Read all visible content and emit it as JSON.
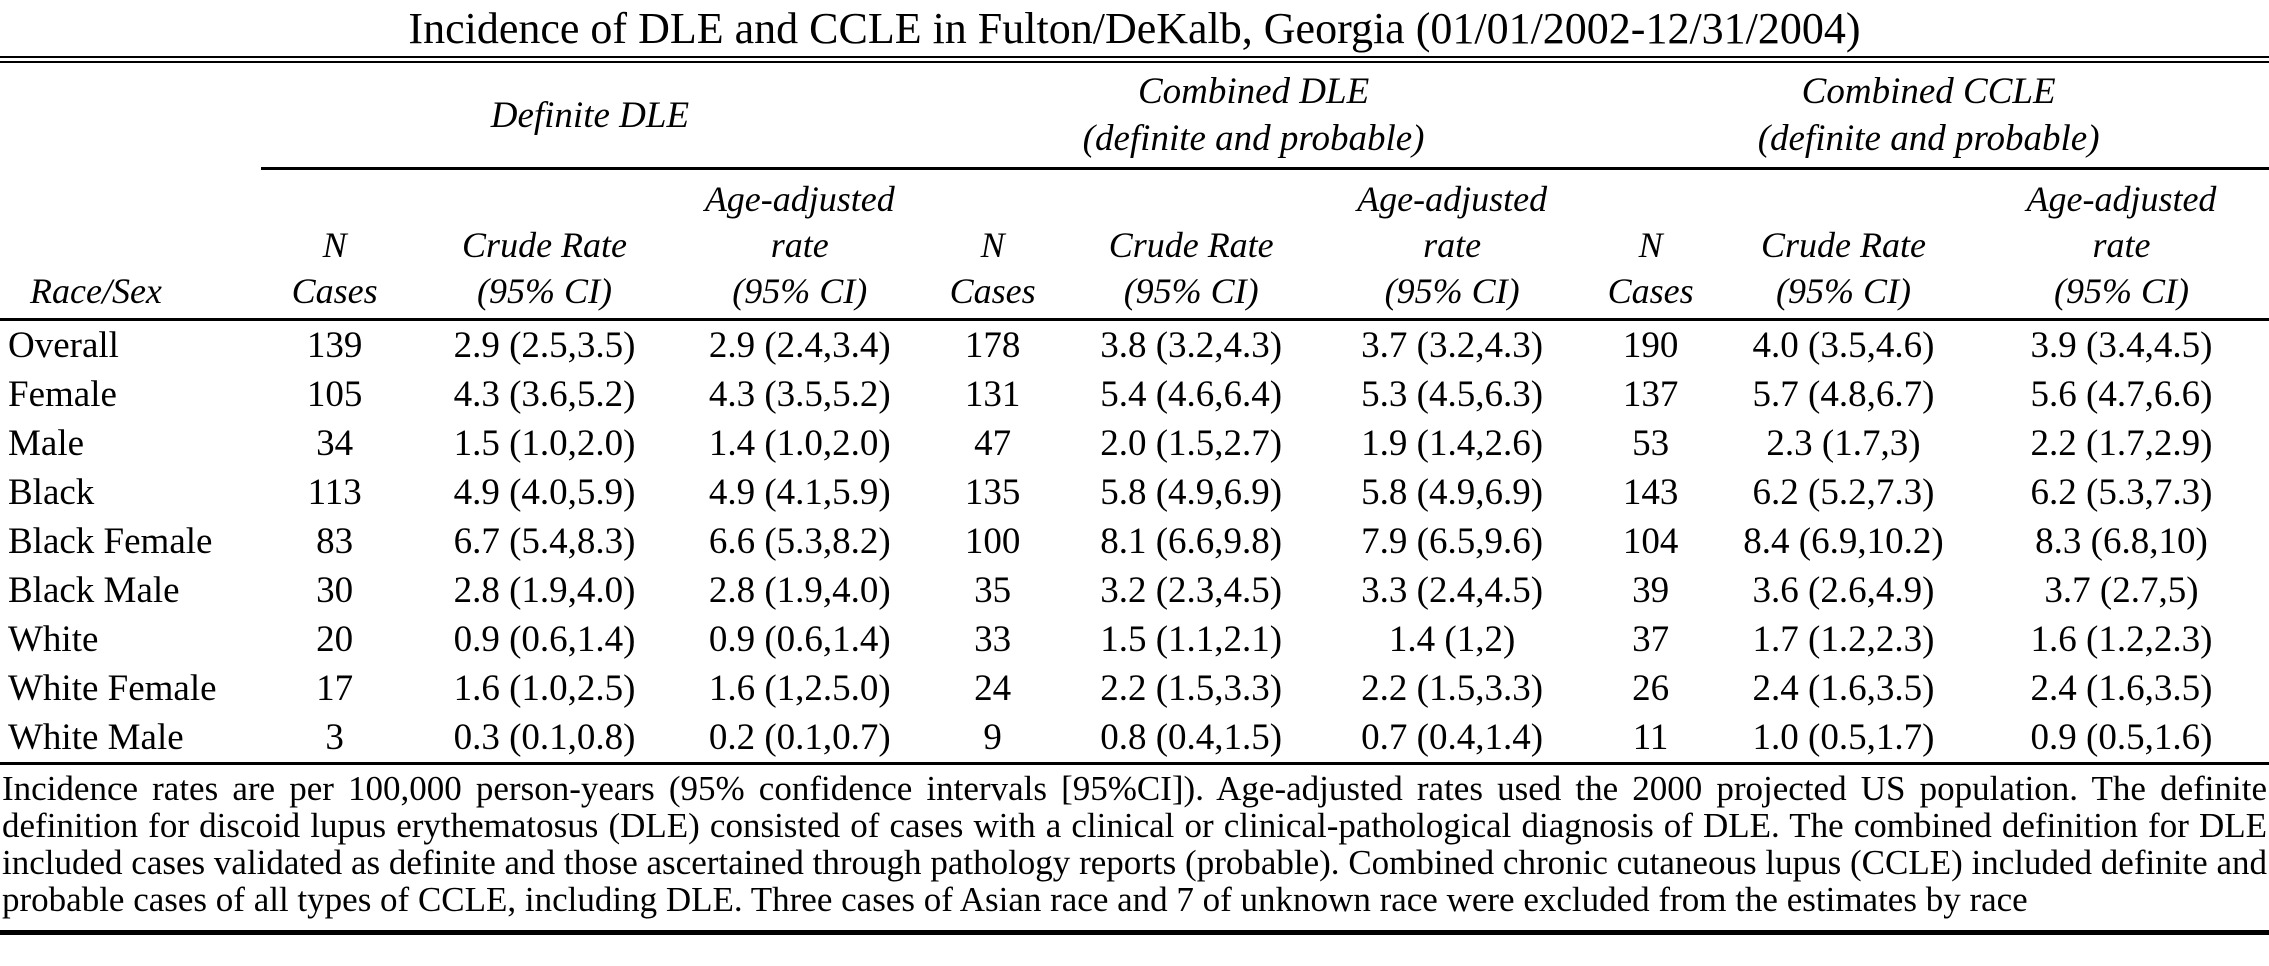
{
  "title": "Incidence of DLE and CCLE in Fulton/DeKalb, Georgia (01/01/2002-12/31/2004)",
  "table": {
    "groups": [
      {
        "label": "Definite DLE",
        "sublabel": ""
      },
      {
        "label": "Combined DLE",
        "sublabel": "(definite and probable)"
      },
      {
        "label": "Combined CCLE",
        "sublabel": "(definite and probable)"
      }
    ],
    "columns": {
      "race_sex": "Race/Sex",
      "n_line1": "N",
      "n_line2": "Cases",
      "crude_line1": "Crude Rate",
      "crude_line2": "(95% CI)",
      "adj_line1": "Age-adjusted",
      "adj_line2": "rate",
      "adj_line3": "(95% CI)"
    },
    "rows": [
      {
        "race_sex": "Overall",
        "cells": [
          "139",
          "2.9 (2.5,3.5)",
          "2.9 (2.4,3.4)",
          "178",
          "3.8 (3.2,4.3)",
          "3.7 (3.2,4.3)",
          "190",
          "4.0 (3.5,4.6)",
          "3.9 (3.4,4.5)"
        ]
      },
      {
        "race_sex": "Female",
        "cells": [
          "105",
          "4.3 (3.6,5.2)",
          "4.3 (3.5,5.2)",
          "131",
          "5.4 (4.6,6.4)",
          "5.3 (4.5,6.3)",
          "137",
          "5.7 (4.8,6.7)",
          "5.6 (4.7,6.6)"
        ]
      },
      {
        "race_sex": "Male",
        "cells": [
          "34",
          "1.5 (1.0,2.0)",
          "1.4 (1.0,2.0)",
          "47",
          "2.0 (1.5,2.7)",
          "1.9 (1.4,2.6)",
          "53",
          "2.3 (1.7,3)",
          "2.2 (1.7,2.9)"
        ]
      },
      {
        "race_sex": "Black",
        "cells": [
          "113",
          "4.9 (4.0,5.9)",
          "4.9 (4.1,5.9)",
          "135",
          "5.8 (4.9,6.9)",
          "5.8 (4.9,6.9)",
          "143",
          "6.2 (5.2,7.3)",
          "6.2 (5.3,7.3)"
        ]
      },
      {
        "race_sex": "Black Female",
        "cells": [
          "83",
          "6.7 (5.4,8.3)",
          "6.6 (5.3,8.2)",
          "100",
          "8.1 (6.6,9.8)",
          "7.9 (6.5,9.6)",
          "104",
          "8.4 (6.9,10.2)",
          "8.3 (6.8,10)"
        ]
      },
      {
        "race_sex": "Black Male",
        "cells": [
          "30",
          "2.8 (1.9,4.0)",
          "2.8 (1.9,4.0)",
          "35",
          "3.2 (2.3,4.5)",
          "3.3 (2.4,4.5)",
          "39",
          "3.6 (2.6,4.9)",
          "3.7 (2.7,5)"
        ]
      },
      {
        "race_sex": "White",
        "cells": [
          "20",
          "0.9 (0.6,1.4)",
          "0.9 (0.6,1.4)",
          "33",
          "1.5 (1.1,2.1)",
          "1.4 (1,2)",
          "37",
          "1.7 (1.2,2.3)",
          "1.6 (1.2,2.3)"
        ]
      },
      {
        "race_sex": "White Female",
        "cells": [
          "17",
          "1.6 (1.0,2.5)",
          "1.6 (1,2.5.0)",
          "24",
          "2.2 (1.5,3.3)",
          "2.2 (1.5,3.3)",
          "26",
          "2.4 (1.6,3.5)",
          "2.4 (1.6,3.5)"
        ]
      },
      {
        "race_sex": "White Male",
        "cells": [
          "3",
          "0.3 (0.1,0.8)",
          "0.2 (0.1,0.7)",
          "9",
          "0.8 (0.4,1.5)",
          "0.7 (0.4,1.4)",
          "11",
          "1.0 (0.5,1.7)",
          "0.9 (0.5,1.6)"
        ]
      }
    ],
    "footnote": "Incidence rates are per 100,000 person-years (95% confidence intervals [95%CI]). Age-adjusted rates used the 2000 projected US population. The definite definition for discoid lupus erythematosus (DLE) consisted of cases with a clinical or clinical-pathological diagnosis of DLE. The combined definition for DLE included cases validated as definite and those ascertained through pathology reports (probable). Combined chronic cutaneous lupus (CCLE) included definite and probable cases of all types of CCLE, including DLE. Three cases of Asian race and 7 of unknown race were excluded from the estimates by race"
  }
}
